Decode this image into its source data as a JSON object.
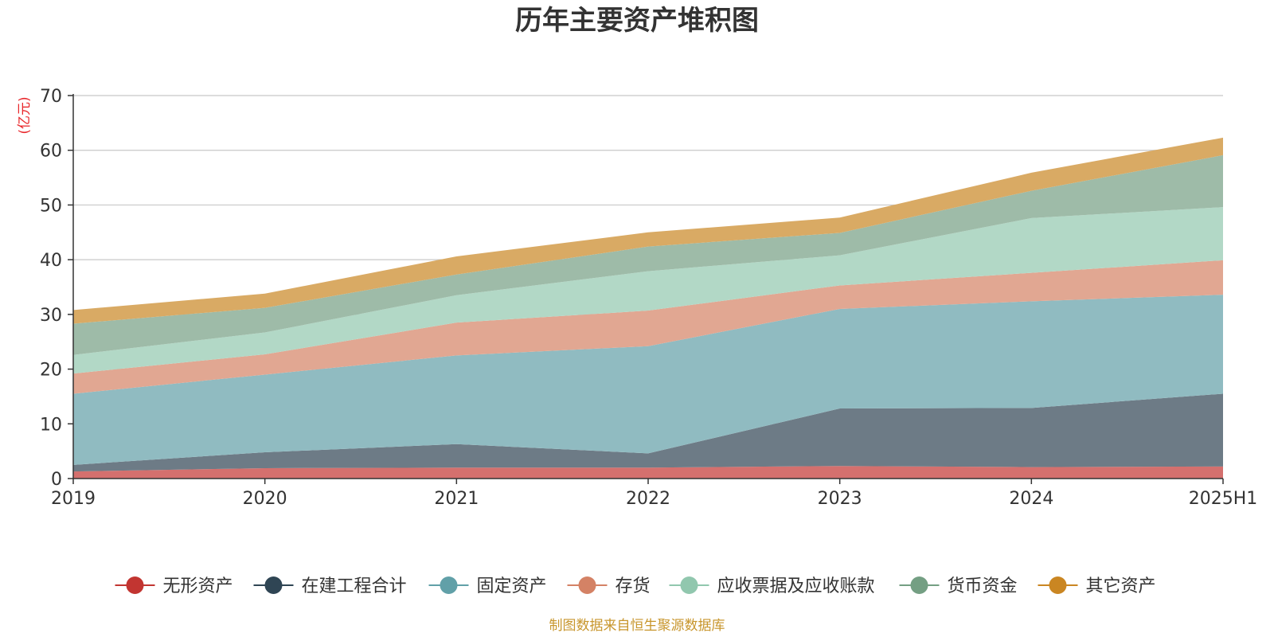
{
  "chart_data": {
    "type": "area",
    "stacked": true,
    "title": "历年主要资产堆积图",
    "unit_label": "(亿元)",
    "categories": [
      "2019",
      "2020",
      "2021",
      "2022",
      "2023",
      "2024",
      "2025H1"
    ],
    "ylim": [
      0,
      70
    ],
    "yticks": [
      0,
      10,
      20,
      30,
      40,
      50,
      60,
      70
    ],
    "grid": true,
    "legend_position": "bottom",
    "series": [
      {
        "name": "无形资产",
        "color": "#c23531",
        "fill": "#d4706e",
        "values": [
          1.3,
          1.9,
          2.0,
          2.0,
          2.3,
          2.1,
          2.2
        ]
      },
      {
        "name": "在建工程合计",
        "color": "#2f4554",
        "fill": "#6d7b86",
        "values": [
          1.2,
          2.9,
          4.3,
          2.6,
          10.5,
          10.8,
          13.3
        ]
      },
      {
        "name": "固定资产",
        "color": "#61a0a8",
        "fill": "#90bbc1",
        "values": [
          13.0,
          14.2,
          16.2,
          19.6,
          18.2,
          19.5,
          18.1
        ]
      },
      {
        "name": "存货",
        "color": "#d48265",
        "fill": "#e1a792",
        "values": [
          3.7,
          3.7,
          6.0,
          6.5,
          4.3,
          5.2,
          6.3
        ]
      },
      {
        "name": "应收票据及应收账款",
        "color": "#91c7ae",
        "fill": "#b2d8c6",
        "values": [
          3.4,
          4.0,
          5.0,
          7.2,
          5.5,
          10.0,
          9.7
        ]
      },
      {
        "name": "货币资金",
        "color": "#749f83",
        "fill": "#9ebba8",
        "values": [
          5.7,
          4.5,
          3.8,
          4.5,
          4.1,
          5.0,
          9.5
        ]
      },
      {
        "name": "其它资产",
        "color": "#ca8622",
        "fill": "#d9aa64",
        "values": [
          2.5,
          2.6,
          3.3,
          2.6,
          2.8,
          3.3,
          3.2
        ]
      }
    ]
  },
  "source_note": "制图数据来自恒生聚源数据库"
}
